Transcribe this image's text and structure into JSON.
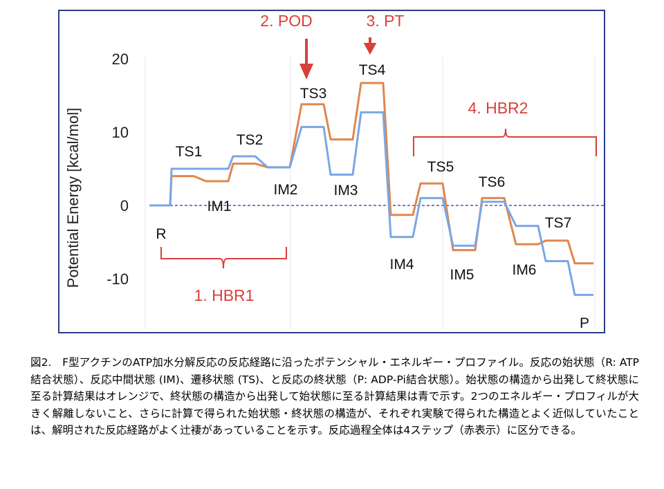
{
  "chart_data": {
    "type": "line",
    "ylabel": "Potential Energy [kcal/mol]",
    "ylim": [
      -15,
      22
    ],
    "yticks": [
      20,
      10,
      0,
      -10
    ],
    "ytick_labels": [
      "20",
      "10",
      "0",
      "-10"
    ],
    "states": [
      "R",
      "TS1",
      "IM1",
      "TS2",
      "IM2",
      "TS3",
      "IM3",
      "TS4",
      "IM4",
      "TS5",
      "IM5",
      "TS6",
      "IM6",
      "TS7",
      "P"
    ],
    "state_labels": [
      "R",
      "TS1",
      "IM1",
      "TS2",
      "IM2",
      "TS3",
      "IM3",
      "TS4",
      "IM4",
      "TS5",
      "IM5",
      "TS6",
      "IM6",
      "TS7",
      "P"
    ],
    "series": [
      {
        "color": "#e0874a",
        "values": [
          0,
          4.0,
          3.3,
          5.7,
          5.2,
          13.8,
          9.0,
          16.7,
          -1.3,
          3.0,
          -6.1,
          1.0,
          -5.3,
          -4.8,
          -7.9
        ]
      },
      {
        "color": "#7aa6e6",
        "values": [
          0,
          5.0,
          5.0,
          6.7,
          5.2,
          10.7,
          4.2,
          12.7,
          -4.3,
          1.0,
          -5.5,
          0.5,
          -2.8,
          -7.6,
          -12.2
        ]
      }
    ],
    "zero_line_color": "#27349a",
    "annotation_color": "#d9403a",
    "annotations": {
      "pod": "2. POD",
      "pt": "3. PT",
      "hbr1": "1. HBR1",
      "hbr2": "4. HBR2"
    }
  },
  "caption": {
    "text": "図2.　F型アクチンのATP加水分解反応の反応経路に沿ったポテンシャル・エネルギー・プロファイル。反応の始状態（R: ATP結合状態）、反応中間状態 (IM)、遷移状態 (TS)、と反応の終状態（P: ADP-Pi結合状態）。始状態の構造から出発して終状態に至る計算結果はオレンジで、終状態の構造から出発して始状態に至る計算結果は青で示す。2つのエネルギー・プロフィルが大きく解離しないこと、さらに計算で得られた始状態・終状態の構造が、それぞれ実験で得られた構造とよく近似していたことは、解明された反応経路がよく辻褄があっていることを示す。反応過程全体は4ステップ（赤表示）に区分できる。"
  }
}
